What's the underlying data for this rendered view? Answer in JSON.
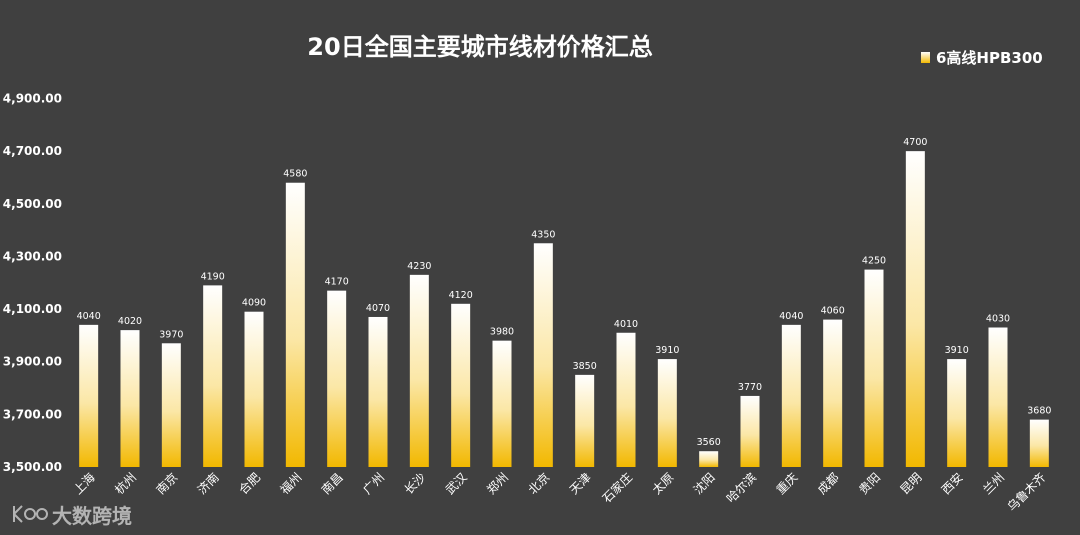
{
  "chart_data": {
    "type": "bar",
    "title": "20日全国主要城市线材价格汇总",
    "series": [
      {
        "name": "6高线HPB300",
        "values": [
          4040,
          4020,
          3970,
          4190,
          4090,
          4580,
          4170,
          4070,
          4230,
          4120,
          3980,
          4350,
          3850,
          4010,
          3910,
          3560,
          3770,
          4040,
          4060,
          4250,
          4700,
          3910,
          4030,
          3680
        ]
      }
    ],
    "categories": [
      "上海",
      "杭州",
      "南京",
      "济南",
      "合肥",
      "福州",
      "南昌",
      "广州",
      "长沙",
      "武汉",
      "郑州",
      "北京",
      "天津",
      "石家庄",
      "太原",
      "沈阳",
      "哈尔滨",
      "重庆",
      "成都",
      "贵阳",
      "昆明",
      "西安",
      "兰州",
      "乌鲁木齐"
    ],
    "yticks": [
      "3,500.00",
      "3,700.00",
      "3,900.00",
      "4,100.00",
      "4,300.00",
      "4,500.00",
      "4,700.00",
      "4,900.00"
    ],
    "ylim": [
      3500,
      4900
    ],
    "xlabel": "",
    "ylabel": "",
    "legend_position": "top-right",
    "grid": false,
    "colors": {
      "bar_top": "#ffffff",
      "bar_bottom": "#f2b800",
      "background": "#404040",
      "text": "#ffffff"
    }
  },
  "watermark": {
    "text": "大数跨境"
  }
}
